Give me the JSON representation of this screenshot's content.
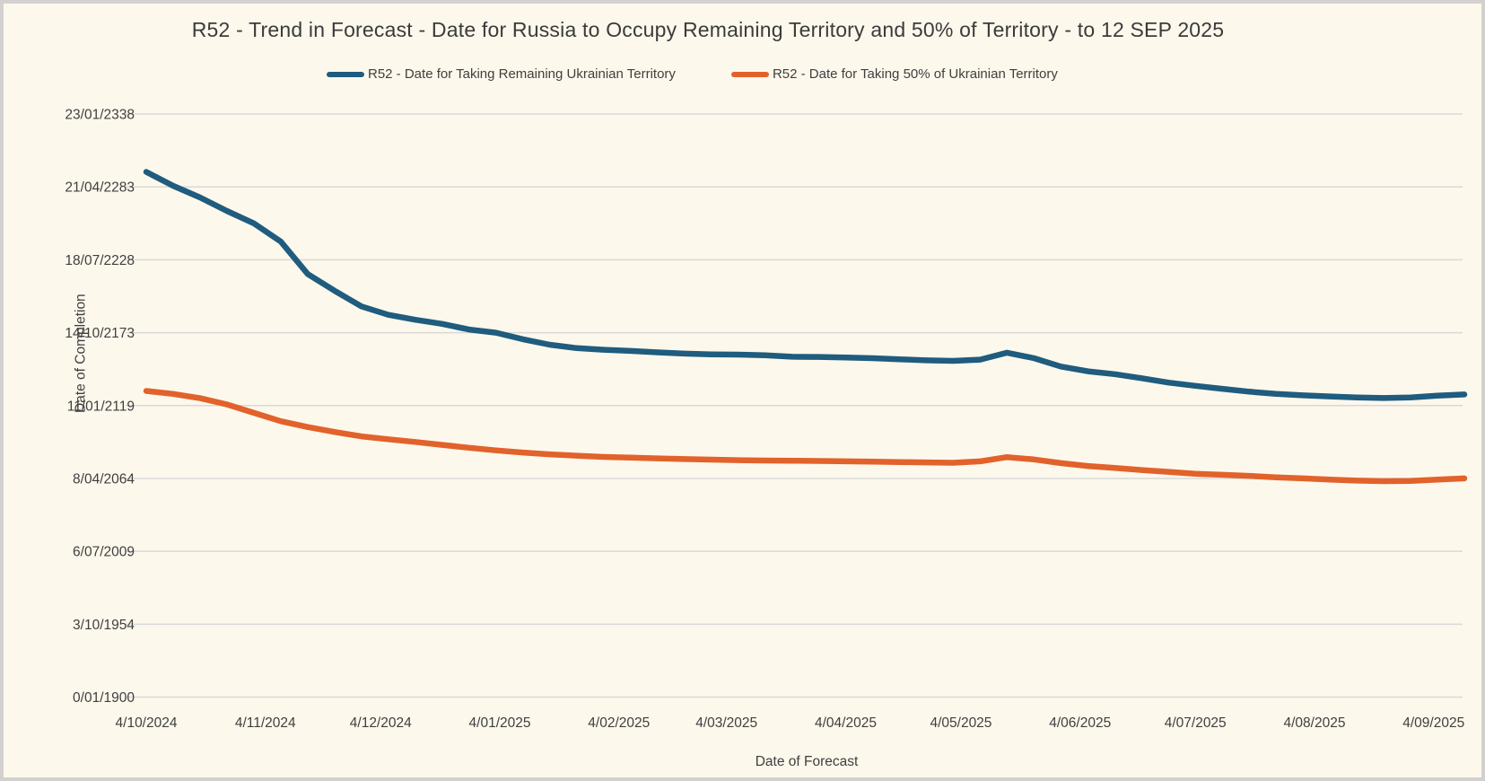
{
  "window": {
    "background": "#FDF8EC",
    "border_color": "#D3D0D0",
    "gridline_color": "#D9D9D9",
    "text_color": "#3F3F3F"
  },
  "chart_data": {
    "type": "line",
    "title": "R52 - Trend in Forecast - Date for Russia to Occupy Remaining Territory and 50% of Territory - to 12 SEP 2025",
    "xlabel": "Date of Forecast",
    "ylabel": "Date of Completion",
    "grid": true,
    "legend_position": "top",
    "y_axis": {
      "unit": "excel-serial-date-days",
      "min": 0,
      "max": 160000,
      "tick_step": 20000,
      "tick_labels": [
        "0/01/1900",
        "3/10/1954",
        "6/07/2009",
        "8/04/2064",
        "11/01/2119",
        "14/10/2173",
        "18/07/2228",
        "21/04/2283",
        "23/01/2338"
      ]
    },
    "x_tick_labels": [
      "4/10/2024",
      "4/11/2024",
      "4/12/2024",
      "4/01/2025",
      "4/02/2025",
      "4/03/2025",
      "4/04/2025",
      "4/05/2025",
      "4/06/2025",
      "4/07/2025",
      "4/08/2025",
      "4/09/2025"
    ],
    "x": [
      "04/10/2024",
      "11/10/2024",
      "18/10/2024",
      "25/10/2024",
      "01/11/2024",
      "08/11/2024",
      "15/11/2024",
      "22/11/2024",
      "29/11/2024",
      "06/12/2024",
      "13/12/2024",
      "20/12/2024",
      "27/12/2024",
      "03/01/2025",
      "10/01/2025",
      "17/01/2025",
      "24/01/2025",
      "31/01/2025",
      "07/02/2025",
      "14/02/2025",
      "21/02/2025",
      "28/02/2025",
      "07/03/2025",
      "14/03/2025",
      "21/03/2025",
      "28/03/2025",
      "04/04/2025",
      "11/04/2025",
      "18/04/2025",
      "25/04/2025",
      "02/05/2025",
      "09/05/2025",
      "16/05/2025",
      "23/05/2025",
      "30/05/2025",
      "06/06/2025",
      "13/06/2025",
      "20/06/2025",
      "27/06/2025",
      "04/07/2025",
      "11/07/2025",
      "18/07/2025",
      "25/07/2025",
      "01/08/2025",
      "08/08/2025",
      "15/08/2025",
      "22/08/2025",
      "29/08/2025",
      "05/09/2025",
      "12/09/2025"
    ],
    "series": [
      {
        "name": "R52 - Date for Taking Remaining Ukrainian Territory",
        "color": "#1F5C7E",
        "values": [
          144100,
          140300,
          137100,
          133400,
          130000,
          125000,
          116100,
          111500,
          107200,
          104900,
          103550,
          102400,
          100850,
          100000,
          98200,
          96700,
          95750,
          95300,
          95000,
          94600,
          94250,
          94050,
          93970,
          93800,
          93400,
          93350,
          93200,
          93000,
          92700,
          92400,
          92250,
          92600,
          94500,
          93000,
          90700,
          89400,
          88600,
          87500,
          86300,
          85400,
          84600,
          83800,
          83200,
          82800,
          82500,
          82200,
          82050,
          82200,
          82700,
          83050
        ]
      },
      {
        "name": "R52 - Date for Taking  50% of Ukrainian Territory",
        "color": "#E2622B",
        "values": [
          84000,
          83200,
          82000,
          80300,
          78000,
          75700,
          74100,
          72750,
          71550,
          70750,
          70000,
          69200,
          68400,
          67700,
          67100,
          66600,
          66250,
          65900,
          65700,
          65500,
          65300,
          65150,
          65000,
          64900,
          64850,
          64800,
          64700,
          64600,
          64500,
          64400,
          64300,
          64700,
          65850,
          65200,
          64200,
          63400,
          62900,
          62300,
          61800,
          61300,
          61000,
          60700,
          60300,
          60000,
          59700,
          59400,
          59250,
          59300,
          59700,
          60000
        ]
      }
    ]
  }
}
